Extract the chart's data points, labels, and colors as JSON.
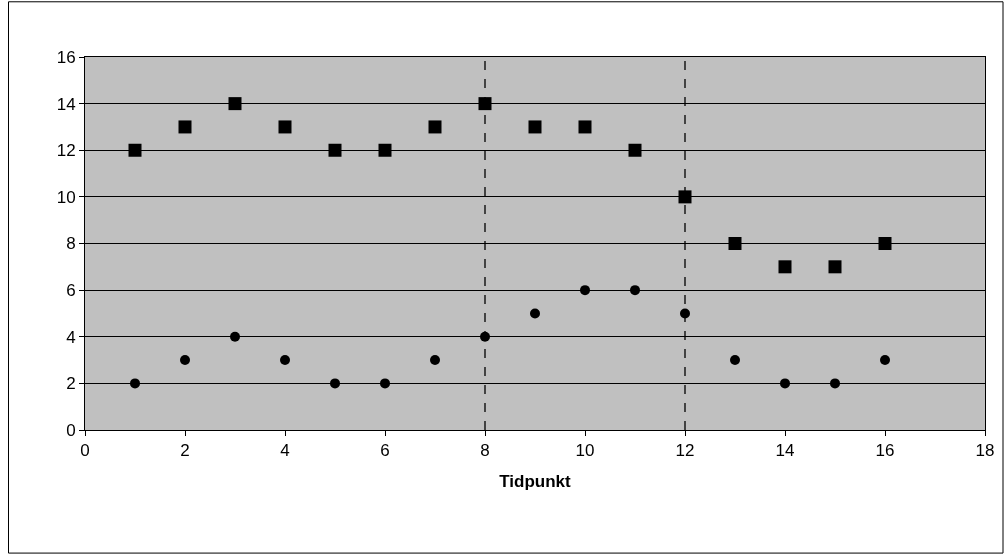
{
  "chart_data": {
    "type": "scatter",
    "xlabel": "Tidpunkt",
    "x": [
      1,
      2,
      3,
      4,
      5,
      6,
      7,
      8,
      9,
      10,
      11,
      12,
      13,
      14,
      15,
      16
    ],
    "series": [
      {
        "color": "#000000",
        "marker": "square",
        "values": [
          12,
          13,
          14,
          13,
          12,
          12,
          13,
          14,
          13,
          13,
          12,
          10,
          8,
          7,
          7,
          8
        ]
      },
      {
        "color": "#000000",
        "marker": "circle",
        "values": [
          2,
          3,
          4,
          3,
          2,
          2,
          3,
          4,
          5,
          6,
          6,
          5,
          3,
          2,
          2,
          3
        ]
      }
    ],
    "xlim": [
      0,
      18
    ],
    "xticks": [
      0,
      2,
      4,
      6,
      8,
      10,
      12,
      14,
      16,
      18
    ],
    "ylim": [
      0,
      16
    ],
    "yticks": [
      0,
      2,
      4,
      6,
      8,
      10,
      12,
      14,
      16
    ],
    "grid": "y",
    "ref_lines": [
      {
        "axis": "x",
        "value": 8,
        "color": "#000000",
        "line_style": "dashed"
      },
      {
        "axis": "x",
        "value": 12,
        "color": "#000000",
        "line_style": "dashed"
      }
    ]
  }
}
